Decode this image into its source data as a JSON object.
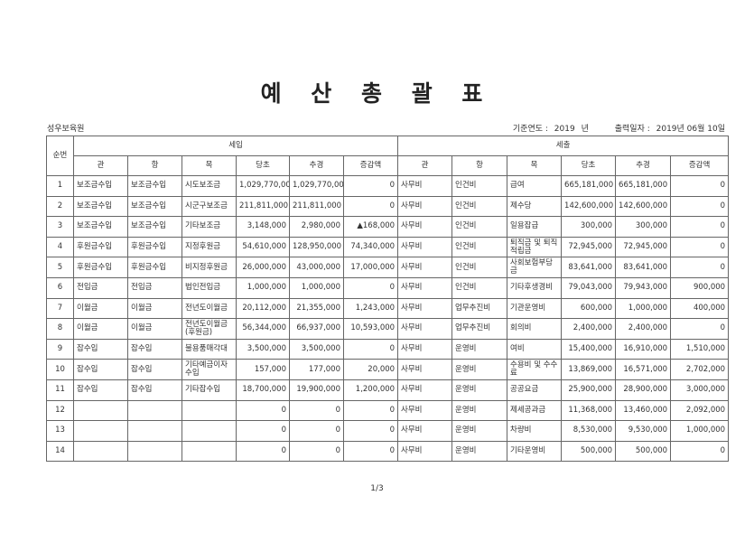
{
  "title": "예 산 총 괄 표",
  "organization": "성우보육원",
  "base_year_label": "기준연도 :",
  "base_year": "2019",
  "year_unit": "년",
  "print_date_label": "출력일자 :",
  "print_date": "2019년 06월 10일",
  "headers": {
    "no": "순번",
    "revenue": "세입",
    "expense": "세출",
    "cols": [
      "관",
      "항",
      "목",
      "당초",
      "추경",
      "증감액"
    ]
  },
  "rows": [
    {
      "no": "1",
      "r": [
        "보조금수입",
        "보조금수입",
        "시도보조금",
        "1,029,770,000",
        "1,029,770,000",
        "0"
      ],
      "e": [
        "사무비",
        "인건비",
        "급여",
        "665,181,000",
        "665,181,000",
        "0"
      ]
    },
    {
      "no": "2",
      "r": [
        "보조금수입",
        "보조금수입",
        "시군구보조금",
        "211,811,000",
        "211,811,000",
        "0"
      ],
      "e": [
        "사무비",
        "인건비",
        "제수당",
        "142,600,000",
        "142,600,000",
        "0"
      ]
    },
    {
      "no": "3",
      "r": [
        "보조금수입",
        "보조금수입",
        "기타보조금",
        "3,148,000",
        "2,980,000",
        "▲168,000"
      ],
      "e": [
        "사무비",
        "인건비",
        "일용잡급",
        "300,000",
        "300,000",
        "0"
      ]
    },
    {
      "no": "4",
      "r": [
        "후원금수입",
        "후원금수입",
        "지정후원금",
        "54,610,000",
        "128,950,000",
        "74,340,000"
      ],
      "e": [
        "사무비",
        "인건비",
        "퇴직금 및 퇴직적립금",
        "72,945,000",
        "72,945,000",
        "0"
      ]
    },
    {
      "no": "5",
      "r": [
        "후원금수입",
        "후원금수입",
        "비지정후원금",
        "26,000,000",
        "43,000,000",
        "17,000,000"
      ],
      "e": [
        "사무비",
        "인건비",
        "사회보험부담금",
        "83,641,000",
        "83,641,000",
        "0"
      ]
    },
    {
      "no": "6",
      "r": [
        "전입금",
        "전입금",
        "법인전입금",
        "1,000,000",
        "1,000,000",
        "0"
      ],
      "e": [
        "사무비",
        "인건비",
        "기타후생경비",
        "79,043,000",
        "79,943,000",
        "900,000"
      ]
    },
    {
      "no": "7",
      "r": [
        "이월금",
        "이월금",
        "전년도이월금",
        "20,112,000",
        "21,355,000",
        "1,243,000"
      ],
      "e": [
        "사무비",
        "업무추진비",
        "기관운영비",
        "600,000",
        "1,000,000",
        "400,000"
      ]
    },
    {
      "no": "8",
      "r": [
        "이월금",
        "이월금",
        "전년도이월금(후원금)",
        "56,344,000",
        "66,937,000",
        "10,593,000"
      ],
      "e": [
        "사무비",
        "업무추진비",
        "회의비",
        "2,400,000",
        "2,400,000",
        "0"
      ]
    },
    {
      "no": "9",
      "r": [
        "잡수입",
        "잡수입",
        "불용품매각대",
        "3,500,000",
        "3,500,000",
        "0"
      ],
      "e": [
        "사무비",
        "운영비",
        "여비",
        "15,400,000",
        "16,910,000",
        "1,510,000"
      ]
    },
    {
      "no": "10",
      "r": [
        "잡수입",
        "잡수입",
        "기타예금이자수입",
        "157,000",
        "177,000",
        "20,000"
      ],
      "e": [
        "사무비",
        "운영비",
        "수용비 및 수수료",
        "13,869,000",
        "16,571,000",
        "2,702,000"
      ]
    },
    {
      "no": "11",
      "r": [
        "잡수입",
        "잡수입",
        "기타잡수입",
        "18,700,000",
        "19,900,000",
        "1,200,000"
      ],
      "e": [
        "사무비",
        "운영비",
        "공공요금",
        "25,900,000",
        "28,900,000",
        "3,000,000"
      ]
    },
    {
      "no": "12",
      "r": [
        "",
        "",
        "",
        "0",
        "0",
        "0"
      ],
      "e": [
        "사무비",
        "운영비",
        "제세공과금",
        "11,368,000",
        "13,460,000",
        "2,092,000"
      ]
    },
    {
      "no": "13",
      "r": [
        "",
        "",
        "",
        "0",
        "0",
        "0"
      ],
      "e": [
        "사무비",
        "운영비",
        "차량비",
        "8,530,000",
        "9,530,000",
        "1,000,000"
      ]
    },
    {
      "no": "14",
      "r": [
        "",
        "",
        "",
        "0",
        "0",
        "0"
      ],
      "e": [
        "사무비",
        "운영비",
        "기타운영비",
        "500,000",
        "500,000",
        "0"
      ]
    }
  ],
  "page_indicator": "1/3"
}
